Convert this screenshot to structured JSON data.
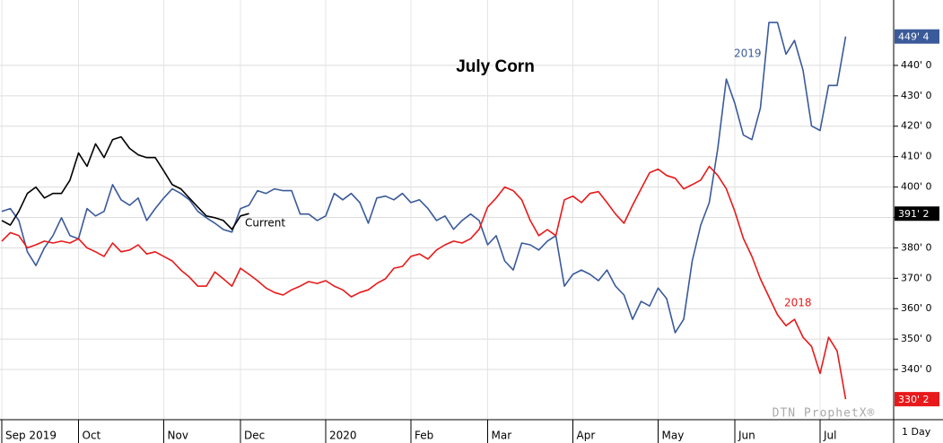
{
  "chart_data": {
    "type": "line",
    "title": "July Corn",
    "watermark": "DTN ProphetX®",
    "period": "1 Day",
    "categories": [
      "Sep 2019",
      null,
      null,
      null,
      null,
      null,
      null,
      null,
      null,
      "Oct",
      null,
      null,
      null,
      null,
      null,
      null,
      null,
      null,
      null,
      "Nov",
      null,
      null,
      null,
      null,
      null,
      null,
      null,
      null,
      "Dec",
      null,
      null,
      null,
      null,
      null,
      null,
      null,
      null,
      null,
      "2020",
      null,
      null,
      null,
      null,
      null,
      null,
      null,
      null,
      null,
      "Feb",
      null,
      null,
      null,
      null,
      null,
      null,
      null,
      null,
      "Mar",
      null,
      null,
      null,
      null,
      null,
      null,
      null,
      null,
      null,
      "Apr",
      null,
      null,
      null,
      null,
      null,
      null,
      null,
      null,
      null,
      "May",
      null,
      null,
      null,
      null,
      null,
      null,
      null,
      null,
      "Jun",
      null,
      null,
      null,
      null,
      null,
      null,
      null,
      null,
      null,
      "Jul",
      null,
      null,
      null
    ],
    "series": [
      {
        "name": "2019",
        "color": "#3a5a9a",
        "end_label": {
          "value": 449.5,
          "label": "449' 4"
        },
        "values": [
          392,
          392.9,
          389,
          378.7,
          374.2,
          380,
          384,
          389.9,
          384,
          383,
          392.9,
          390.5,
          392,
          400.8,
          395.8,
          394,
          396.4,
          389,
          392.9,
          396.4,
          399.4,
          397.9,
          395.8,
          392,
          389.9,
          388.1,
          386,
          385.2,
          392.9,
          394,
          398.8,
          397.9,
          399.4,
          398.8,
          398.8,
          391.1,
          391.1,
          389,
          390.5,
          397.9,
          395.8,
          397.9,
          394.9,
          388.1,
          396.4,
          397,
          395.8,
          397.9,
          394.9,
          395.8,
          392.9,
          389,
          390.5,
          386.1,
          389,
          391.1,
          389,
          381,
          384,
          375.7,
          372.7,
          381.6,
          381,
          379.3,
          382.2,
          384,
          367.4,
          371.3,
          372.7,
          371.3,
          369.2,
          372.7,
          367.4,
          364.5,
          356.5,
          362.4,
          360.9,
          366.8,
          363.3,
          352.1,
          356.5,
          375.7,
          387.5,
          394.9,
          412.7,
          435.5,
          427.5,
          417.1,
          415.6,
          426,
          454.1,
          454.1,
          443.7,
          448.2,
          438.4,
          420.1,
          418.6,
          433.4,
          433.4,
          449.5
        ]
      },
      {
        "name": "2018",
        "color": "#e8191a",
        "end_label": {
          "value": 330.25,
          "label": "330' 2"
        },
        "values": [
          382.2,
          385,
          384,
          380,
          381,
          382.2,
          381.6,
          382.2,
          381.6,
          383,
          380,
          378.7,
          377.2,
          381.6,
          378.7,
          379.3,
          381,
          378,
          378.7,
          377.2,
          375.7,
          372.7,
          370.4,
          367.4,
          367.4,
          372.1,
          369.8,
          367.4,
          373.3,
          371.3,
          369.2,
          366.8,
          365.3,
          364.5,
          366.2,
          367.4,
          368.9,
          368.3,
          369.2,
          367.4,
          366.2,
          363.9,
          365.3,
          366.2,
          368.3,
          369.8,
          373.3,
          373.9,
          377.2,
          378,
          376.3,
          379.3,
          381,
          382.2,
          381.6,
          383,
          386.1,
          393.4,
          396.4,
          400,
          398.8,
          395.8,
          389,
          384,
          386,
          384,
          395.8,
          397,
          394.9,
          397.9,
          398.5,
          394.9,
          391.1,
          388.1,
          394,
          399.4,
          404.7,
          405.9,
          403.8,
          402.9,
          399.4,
          400.8,
          402.3,
          406.8,
          403.8,
          399.4,
          392,
          383.1,
          377.2,
          369.8,
          363.9,
          358,
          354.4,
          356.5,
          350.6,
          347.6,
          338.7,
          350.6,
          346.1,
          330.25
        ]
      },
      {
        "name": "Current",
        "color": "#000000",
        "end_label": {
          "value": 391.25,
          "label": "391' 2"
        },
        "values": [
          389,
          387.5,
          392,
          397.9,
          400,
          396.4,
          397.9,
          397.9,
          402.3,
          411.2,
          406.8,
          414.2,
          409.7,
          415.6,
          416.5,
          412.7,
          410.6,
          409.7,
          409.7,
          405.3,
          400.8,
          399.4,
          396.4,
          393.4,
          390.5,
          389.9,
          389,
          386.1,
          390.5,
          391.25,
          null,
          null,
          null,
          null,
          null,
          null,
          null,
          null,
          null,
          null,
          null,
          null,
          null,
          null,
          null,
          null,
          null,
          null,
          null,
          null,
          null,
          null,
          null,
          null,
          null,
          null,
          null,
          null,
          null,
          null,
          null,
          null,
          null,
          null,
          null,
          null,
          null,
          null,
          null,
          null,
          null,
          null,
          null,
          null,
          null,
          null,
          null,
          null,
          null,
          null,
          null,
          null,
          null,
          null,
          null,
          null,
          null,
          null,
          null,
          null,
          null,
          null,
          null,
          null,
          null,
          null,
          null,
          null,
          null,
          null
        ]
      }
    ],
    "ylim": [
      323.5,
      461.5
    ],
    "yticks": [
      {
        "value": 340,
        "label": "340' 0"
      },
      {
        "value": 350,
        "label": "350' 0"
      },
      {
        "value": 360,
        "label": "360' 0"
      },
      {
        "value": 370,
        "label": "370' 0"
      },
      {
        "value": 380,
        "label": "380' 0"
      },
      {
        "value": 390,
        "label": "390' 0"
      },
      {
        "value": 400,
        "label": "400' 0"
      },
      {
        "value": 410,
        "label": "410' 0"
      },
      {
        "value": 420,
        "label": "420' 0"
      },
      {
        "value": 430,
        "label": "430' 0"
      },
      {
        "value": 440,
        "label": "440' 0"
      }
    ],
    "grid": true
  }
}
